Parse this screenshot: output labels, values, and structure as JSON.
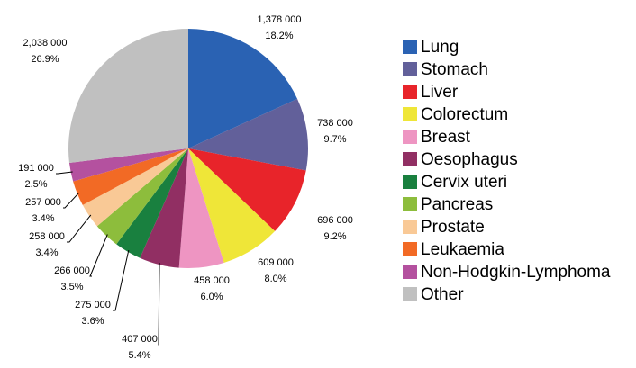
{
  "chart_data": {
    "type": "pie",
    "categories": [
      "Lung",
      "Stomach",
      "Liver",
      "Colorectum",
      "Breast",
      "Oesophagus",
      "Cervix uteri",
      "Pancreas",
      "Prostate",
      "Leukaemia",
      "Non-Hodgkin-Lymphoma",
      "Other"
    ],
    "values": [
      1378000,
      738000,
      696000,
      609000,
      458000,
      407000,
      275000,
      266000,
      258000,
      257000,
      191000,
      2038000
    ],
    "value_labels": [
      "1,378 000",
      "738 000",
      "696 000",
      "609 000",
      "458 000",
      "407 000",
      "275 000",
      "266 000",
      "258 000",
      "257 000",
      "191 000",
      "2,038 000"
    ],
    "percentages": [
      18.2,
      9.7,
      9.2,
      8.0,
      6.0,
      5.4,
      3.6,
      3.5,
      3.4,
      3.4,
      2.5,
      26.9
    ],
    "percentage_labels": [
      "18.2%",
      "9.7%",
      "9.2%",
      "8.0%",
      "6.0%",
      "5.4%",
      "3.6%",
      "3.5%",
      "3.4%",
      "3.4%",
      "2.5%",
      "26.9%"
    ],
    "colors": [
      "#2a62b3",
      "#62609a",
      "#e8242a",
      "#efe638",
      "#ee95c2",
      "#912f63",
      "#19803f",
      "#8dbd3c",
      "#f9c996",
      "#f26a25",
      "#b4519f",
      "#c0c0c0"
    ],
    "legend": "right"
  }
}
